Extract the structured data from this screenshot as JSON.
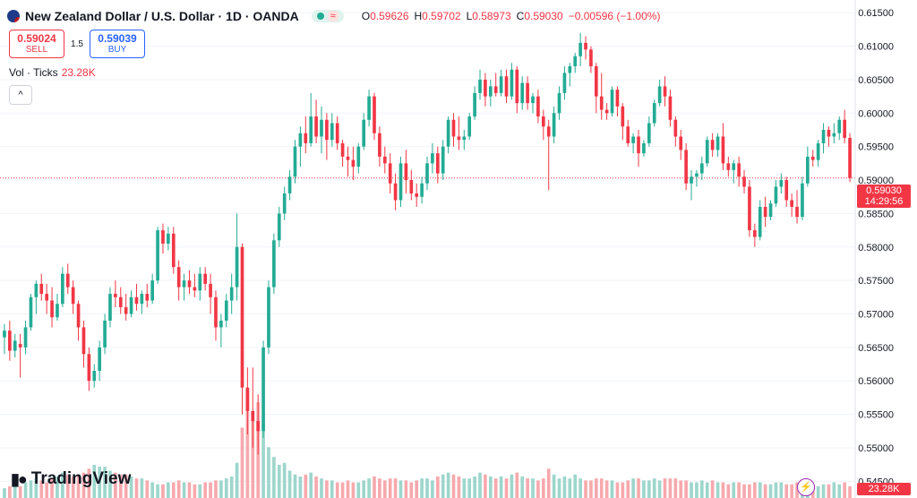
{
  "header": {
    "title": "New Zealand Dollar / U.S. Dollar · 1D · OANDA",
    "pill_symbol": "≈",
    "ohlc": [
      {
        "k": "O",
        "v": "0.59626"
      },
      {
        "k": "H",
        "v": "0.59702"
      },
      {
        "k": "L",
        "v": "0.58973"
      },
      {
        "k": "C",
        "v": "0.59030"
      }
    ],
    "change": "−0.00596 (−1.00%)"
  },
  "trade": {
    "sell_price": "0.59024",
    "sell_label": "SELL",
    "spread": "1.5",
    "buy_price": "0.59039",
    "buy_label": "BUY"
  },
  "volume": {
    "label": "Vol · Ticks",
    "value": "23.28K"
  },
  "price_tag": {
    "price": "0.59030",
    "countdown": "14:29:56"
  },
  "volume_tag": "23.28K",
  "logo": "TradingView",
  "colors": {
    "up": "#22ab94",
    "down": "#f23645",
    "vol_up": "#9dd6cc",
    "vol_down": "#f7a9ad"
  },
  "chart_data": {
    "type": "candlestick",
    "title": "New Zealand Dollar / U.S. Dollar · 1D · OANDA",
    "ylim": [
      0.5425,
      0.6165
    ],
    "y_ticks": [
      "0.61500",
      "0.61000",
      "0.60500",
      "0.60000",
      "0.59500",
      "0.59000",
      "0.58500",
      "0.58000",
      "0.57500",
      "0.57000",
      "0.56500",
      "0.56000",
      "0.55500",
      "0.55000",
      "0.54500"
    ],
    "last_price": 0.5903,
    "candles": [
      [
        0.5665,
        0.5685,
        0.564,
        0.5675
      ],
      [
        0.5675,
        0.569,
        0.563,
        0.5645
      ],
      [
        0.5645,
        0.567,
        0.5635,
        0.566
      ],
      [
        0.5655,
        0.567,
        0.5605,
        0.565
      ],
      [
        0.565,
        0.569,
        0.564,
        0.568
      ],
      [
        0.568,
        0.573,
        0.5675,
        0.5725
      ],
      [
        0.5725,
        0.575,
        0.57,
        0.5745
      ],
      [
        0.5745,
        0.576,
        0.572,
        0.573
      ],
      [
        0.573,
        0.5745,
        0.57,
        0.572
      ],
      [
        0.572,
        0.574,
        0.568,
        0.5695
      ],
      [
        0.5695,
        0.573,
        0.569,
        0.5715
      ],
      [
        0.5715,
        0.577,
        0.571,
        0.576
      ],
      [
        0.576,
        0.5775,
        0.573,
        0.574
      ],
      [
        0.574,
        0.575,
        0.57,
        0.5715
      ],
      [
        0.5715,
        0.572,
        0.566,
        0.568
      ],
      [
        0.568,
        0.569,
        0.562,
        0.564
      ],
      [
        0.564,
        0.565,
        0.5585,
        0.56
      ],
      [
        0.56,
        0.5625,
        0.559,
        0.5615
      ],
      [
        0.5615,
        0.566,
        0.56,
        0.565
      ],
      [
        0.565,
        0.57,
        0.564,
        0.569
      ],
      [
        0.569,
        0.574,
        0.568,
        0.573
      ],
      [
        0.573,
        0.575,
        0.571,
        0.5725
      ],
      [
        0.5725,
        0.574,
        0.57,
        0.571
      ],
      [
        0.571,
        0.573,
        0.569,
        0.57
      ],
      [
        0.57,
        0.5735,
        0.5695,
        0.5725
      ],
      [
        0.5725,
        0.5745,
        0.5705,
        0.5715
      ],
      [
        0.5715,
        0.5735,
        0.57,
        0.573
      ],
      [
        0.573,
        0.5745,
        0.571,
        0.572
      ],
      [
        0.572,
        0.576,
        0.5715,
        0.575
      ],
      [
        0.575,
        0.583,
        0.5745,
        0.5825
      ],
      [
        0.5825,
        0.5835,
        0.579,
        0.5805
      ],
      [
        0.5805,
        0.583,
        0.5795,
        0.582
      ],
      [
        0.582,
        0.583,
        0.576,
        0.577
      ],
      [
        0.577,
        0.578,
        0.572,
        0.574
      ],
      [
        0.574,
        0.576,
        0.572,
        0.575
      ],
      [
        0.575,
        0.5765,
        0.573,
        0.574
      ],
      [
        0.574,
        0.576,
        0.5725,
        0.5735
      ],
      [
        0.5735,
        0.577,
        0.572,
        0.576
      ],
      [
        0.576,
        0.577,
        0.5735,
        0.5745
      ],
      [
        0.5745,
        0.576,
        0.57,
        0.5725
      ],
      [
        0.5725,
        0.5735,
        0.566,
        0.568
      ],
      [
        0.568,
        0.57,
        0.565,
        0.569
      ],
      [
        0.569,
        0.573,
        0.568,
        0.572
      ],
      [
        0.572,
        0.576,
        0.57,
        0.574
      ],
      [
        0.574,
        0.585,
        0.572,
        0.58
      ],
      [
        0.58,
        0.5805,
        0.555,
        0.559
      ],
      [
        0.559,
        0.562,
        0.552,
        0.5555
      ],
      [
        0.5555,
        0.562,
        0.55,
        0.554
      ],
      [
        0.554,
        0.558,
        0.549,
        0.5525
      ],
      [
        0.5525,
        0.566,
        0.5515,
        0.565
      ],
      [
        0.565,
        0.575,
        0.564,
        0.574
      ],
      [
        0.574,
        0.582,
        0.573,
        0.581
      ],
      [
        0.581,
        0.586,
        0.58,
        0.585
      ],
      [
        0.585,
        0.589,
        0.584,
        0.588
      ],
      [
        0.588,
        0.5915,
        0.587,
        0.5905
      ],
      [
        0.5905,
        0.596,
        0.5895,
        0.595
      ],
      [
        0.595,
        0.598,
        0.592,
        0.597
      ],
      [
        0.597,
        0.5995,
        0.594,
        0.5955
      ],
      [
        0.5955,
        0.603,
        0.595,
        0.5995
      ],
      [
        0.5995,
        0.602,
        0.5955,
        0.5965
      ],
      [
        0.5965,
        0.601,
        0.594,
        0.599
      ],
      [
        0.599,
        0.6,
        0.593,
        0.596
      ],
      [
        0.596,
        0.6,
        0.595,
        0.5985
      ],
      [
        0.5985,
        0.5995,
        0.5945,
        0.5955
      ],
      [
        0.5955,
        0.596,
        0.592,
        0.5935
      ],
      [
        0.5935,
        0.595,
        0.5905,
        0.593
      ],
      [
        0.593,
        0.595,
        0.59,
        0.592
      ],
      [
        0.592,
        0.5955,
        0.591,
        0.595
      ],
      [
        0.595,
        0.6,
        0.5945,
        0.599
      ],
      [
        0.599,
        0.6035,
        0.598,
        0.6025
      ],
      [
        0.6025,
        0.603,
        0.596,
        0.597
      ],
      [
        0.597,
        0.598,
        0.592,
        0.5935
      ],
      [
        0.5935,
        0.595,
        0.591,
        0.5925
      ],
      [
        0.5925,
        0.594,
        0.588,
        0.5895
      ],
      [
        0.5895,
        0.591,
        0.5855,
        0.587
      ],
      [
        0.587,
        0.5935,
        0.586,
        0.5925
      ],
      [
        0.5925,
        0.5945,
        0.588,
        0.59
      ],
      [
        0.59,
        0.5915,
        0.587,
        0.588
      ],
      [
        0.588,
        0.5895,
        0.586,
        0.5875
      ],
      [
        0.5875,
        0.5905,
        0.5865,
        0.5895
      ],
      [
        0.5895,
        0.5935,
        0.5885,
        0.5925
      ],
      [
        0.5925,
        0.5955,
        0.591,
        0.594
      ],
      [
        0.594,
        0.595,
        0.5895,
        0.591
      ],
      [
        0.591,
        0.596,
        0.59,
        0.595
      ],
      [
        0.595,
        0.5995,
        0.594,
        0.599
      ],
      [
        0.599,
        0.6,
        0.595,
        0.5965
      ],
      [
        0.5965,
        0.5995,
        0.5945,
        0.596
      ],
      [
        0.596,
        0.5975,
        0.5945,
        0.5965
      ],
      [
        0.5965,
        0.6,
        0.596,
        0.5995
      ],
      [
        0.5995,
        0.604,
        0.599,
        0.603
      ],
      [
        0.603,
        0.6065,
        0.602,
        0.605
      ],
      [
        0.605,
        0.606,
        0.601,
        0.6025
      ],
      [
        0.6025,
        0.605,
        0.601,
        0.604
      ],
      [
        0.604,
        0.606,
        0.6025,
        0.603
      ],
      [
        0.603,
        0.6065,
        0.6025,
        0.6055
      ],
      [
        0.6055,
        0.6065,
        0.6015,
        0.6025
      ],
      [
        0.6025,
        0.6075,
        0.602,
        0.6065
      ],
      [
        0.6065,
        0.607,
        0.6,
        0.6015
      ],
      [
        0.6015,
        0.6055,
        0.6005,
        0.6045
      ],
      [
        0.6045,
        0.6055,
        0.6005,
        0.6015
      ],
      [
        0.6015,
        0.603,
        0.6,
        0.6025
      ],
      [
        0.6025,
        0.6035,
        0.5985,
        0.5995
      ],
      [
        0.5995,
        0.6005,
        0.596,
        0.598
      ],
      [
        0.598,
        0.599,
        0.5885,
        0.5965
      ],
      [
        0.5965,
        0.601,
        0.5955,
        0.6
      ],
      [
        0.6,
        0.604,
        0.599,
        0.603
      ],
      [
        0.603,
        0.607,
        0.602,
        0.606
      ],
      [
        0.606,
        0.6075,
        0.604,
        0.607
      ],
      [
        0.607,
        0.609,
        0.606,
        0.6085
      ],
      [
        0.6085,
        0.612,
        0.607,
        0.6105
      ],
      [
        0.6105,
        0.6115,
        0.608,
        0.6095
      ],
      [
        0.6095,
        0.61,
        0.606,
        0.607
      ],
      [
        0.607,
        0.6075,
        0.6,
        0.6025
      ],
      [
        0.6025,
        0.606,
        0.599,
        0.6005
      ],
      [
        0.6005,
        0.6015,
        0.599,
        0.6
      ],
      [
        0.6,
        0.604,
        0.5995,
        0.6035
      ],
      [
        0.6035,
        0.604,
        0.5995,
        0.601
      ],
      [
        0.601,
        0.6015,
        0.596,
        0.598
      ],
      [
        0.598,
        0.599,
        0.595,
        0.5955
      ],
      [
        0.5955,
        0.597,
        0.594,
        0.5965
      ],
      [
        0.5965,
        0.5975,
        0.592,
        0.594
      ],
      [
        0.594,
        0.596,
        0.5935,
        0.5955
      ],
      [
        0.5955,
        0.5995,
        0.595,
        0.5985
      ],
      [
        0.5985,
        0.602,
        0.598,
        0.6015
      ],
      [
        0.6015,
        0.605,
        0.601,
        0.604
      ],
      [
        0.604,
        0.6055,
        0.601,
        0.6025
      ],
      [
        0.6025,
        0.6035,
        0.598,
        0.599
      ],
      [
        0.599,
        0.5995,
        0.595,
        0.5965
      ],
      [
        0.5965,
        0.5975,
        0.593,
        0.5945
      ],
      [
        0.5945,
        0.5955,
        0.5885,
        0.5895
      ],
      [
        0.5895,
        0.5915,
        0.587,
        0.5905
      ],
      [
        0.5905,
        0.5915,
        0.589,
        0.591
      ],
      [
        0.591,
        0.5935,
        0.59,
        0.5925
      ],
      [
        0.5925,
        0.5965,
        0.592,
        0.596
      ],
      [
        0.596,
        0.597,
        0.5935,
        0.5945
      ],
      [
        0.5945,
        0.597,
        0.5935,
        0.5965
      ],
      [
        0.5965,
        0.5985,
        0.5915,
        0.5925
      ],
      [
        0.5925,
        0.5935,
        0.5905,
        0.5915
      ],
      [
        0.5915,
        0.593,
        0.5895,
        0.5925
      ],
      [
        0.5925,
        0.5935,
        0.589,
        0.5905
      ],
      [
        0.5905,
        0.5915,
        0.588,
        0.589
      ],
      [
        0.589,
        0.59,
        0.5815,
        0.5825
      ],
      [
        0.5825,
        0.5835,
        0.58,
        0.5815
      ],
      [
        0.5815,
        0.587,
        0.581,
        0.586
      ],
      [
        0.586,
        0.5875,
        0.583,
        0.5845
      ],
      [
        0.5845,
        0.587,
        0.584,
        0.5865
      ],
      [
        0.5865,
        0.59,
        0.586,
        0.589
      ],
      [
        0.589,
        0.591,
        0.588,
        0.59
      ],
      [
        0.59,
        0.5905,
        0.586,
        0.587
      ],
      [
        0.587,
        0.588,
        0.5845,
        0.586
      ],
      [
        0.586,
        0.5885,
        0.5835,
        0.5845
      ],
      [
        0.5845,
        0.5905,
        0.584,
        0.5895
      ],
      [
        0.5895,
        0.595,
        0.589,
        0.5935
      ],
      [
        0.5935,
        0.5945,
        0.592,
        0.593
      ],
      [
        0.593,
        0.596,
        0.592,
        0.5955
      ],
      [
        0.5955,
        0.5985,
        0.594,
        0.5975
      ],
      [
        0.5975,
        0.598,
        0.595,
        0.5965
      ],
      [
        0.5965,
        0.5985,
        0.5955,
        0.597
      ],
      [
        0.597,
        0.5995,
        0.596,
        0.599
      ],
      [
        0.599,
        0.6005,
        0.5955,
        0.5963
      ],
      [
        0.5963,
        0.597,
        0.5897,
        0.5903
      ]
    ],
    "volume": [
      0.5,
      0.6,
      0.7,
      0.6,
      0.8,
      0.9,
      1.0,
      0.9,
      0.8,
      1.0,
      1.1,
      1.3,
      1.2,
      1.1,
      1.2,
      1.3,
      1.5,
      1.7,
      1.6,
      1.6,
      1.4,
      1.3,
      1.2,
      1.2,
      1.1,
      1.0,
      1.0,
      0.9,
      0.8,
      0.7,
      0.7,
      0.8,
      0.8,
      0.9,
      0.8,
      0.8,
      0.7,
      0.7,
      0.8,
      0.8,
      0.9,
      0.9,
      1.0,
      1.1,
      1.8,
      3.6,
      5.5,
      4.2,
      4.9,
      3.8,
      2.6,
      2.1,
      1.7,
      1.8,
      1.4,
      1.2,
      1.1,
      1.2,
      1.3,
      1.1,
      1.0,
      0.9,
      0.9,
      0.8,
      0.8,
      0.9,
      0.8,
      0.8,
      0.9,
      1.0,
      1.1,
      1.0,
      0.9,
      1.0,
      1.0,
      0.9,
      0.9,
      0.8,
      0.9,
      1.0,
      1.0,
      0.9,
      1.1,
      1.2,
      1.3,
      1.2,
      1.1,
      1.0,
      1.0,
      1.1,
      1.3,
      1.2,
      1.1,
      1.0,
      1.1,
      1.0,
      1.2,
      1.3,
      1.1,
      1.0,
      1.0,
      0.9,
      1.0,
      1.5,
      1.2,
      1.0,
      1.1,
      1.0,
      1.2,
      1.0,
      0.9,
      0.9,
      1.0,
      1.0,
      0.9,
      0.9,
      0.8,
      0.8,
      0.9,
      1.0,
      1.0,
      0.9,
      0.9,
      1.0,
      0.9,
      1.0,
      1.0,
      1.0,
      0.9,
      0.9,
      0.8,
      0.8,
      0.9,
      0.8,
      0.9,
      0.8,
      0.8,
      0.7,
      0.8,
      0.8,
      0.7,
      0.7,
      0.8,
      0.8,
      0.7,
      0.7,
      0.8,
      0.8,
      0.7,
      0.7,
      0.8,
      0.7,
      0.7,
      0.6,
      0.6,
      0.7,
      0.7,
      0.8,
      0.7,
      0.8,
      0.6
    ]
  }
}
